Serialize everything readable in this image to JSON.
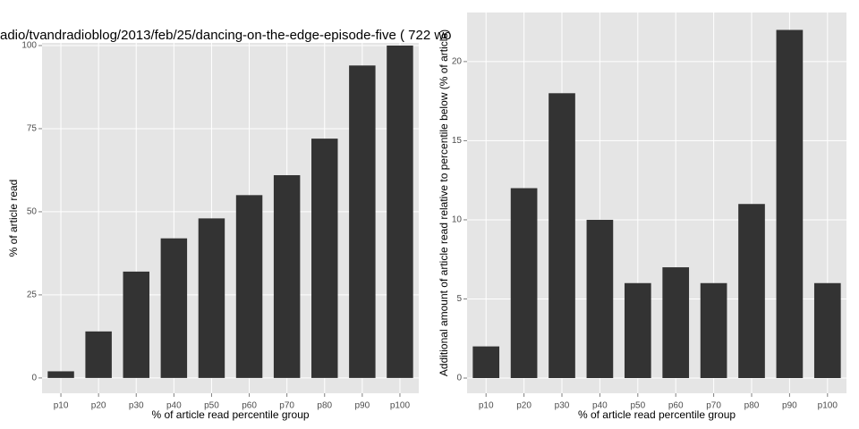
{
  "chart_data": [
    {
      "type": "bar",
      "title": "adio/tvandradioblog/2013/feb/25/dancing-on-the-edge-episode-five ( 722 wo",
      "x_label": "% of article read percentile group",
      "y_label": "% of article read",
      "categories": [
        "p10",
        "p20",
        "p30",
        "p40",
        "p50",
        "p60",
        "p70",
        "p80",
        "p90",
        "p100"
      ],
      "values": [
        2,
        14,
        32,
        42,
        48,
        55,
        61,
        72,
        94,
        100
      ],
      "color": "#333333",
      "ylim": [
        -4.6,
        100.8
      ],
      "yticks": [
        0,
        25,
        50,
        75,
        100
      ],
      "grid": true
    },
    {
      "type": "bar",
      "x_label": "% of article read percentile group",
      "y_label": "Additional amount of article read relative to percentile below (% of article)",
      "categories": [
        "p10",
        "p20",
        "p30",
        "p40",
        "p50",
        "p60",
        "p70",
        "p80",
        "p90",
        "p100"
      ],
      "values": [
        2,
        12,
        18,
        10,
        6,
        7,
        6,
        11,
        22,
        6
      ],
      "color": "#333333",
      "ylim": [
        -0.96,
        23.1
      ],
      "yticks": [
        0,
        5,
        10,
        15,
        20
      ],
      "grid": true
    }
  ]
}
